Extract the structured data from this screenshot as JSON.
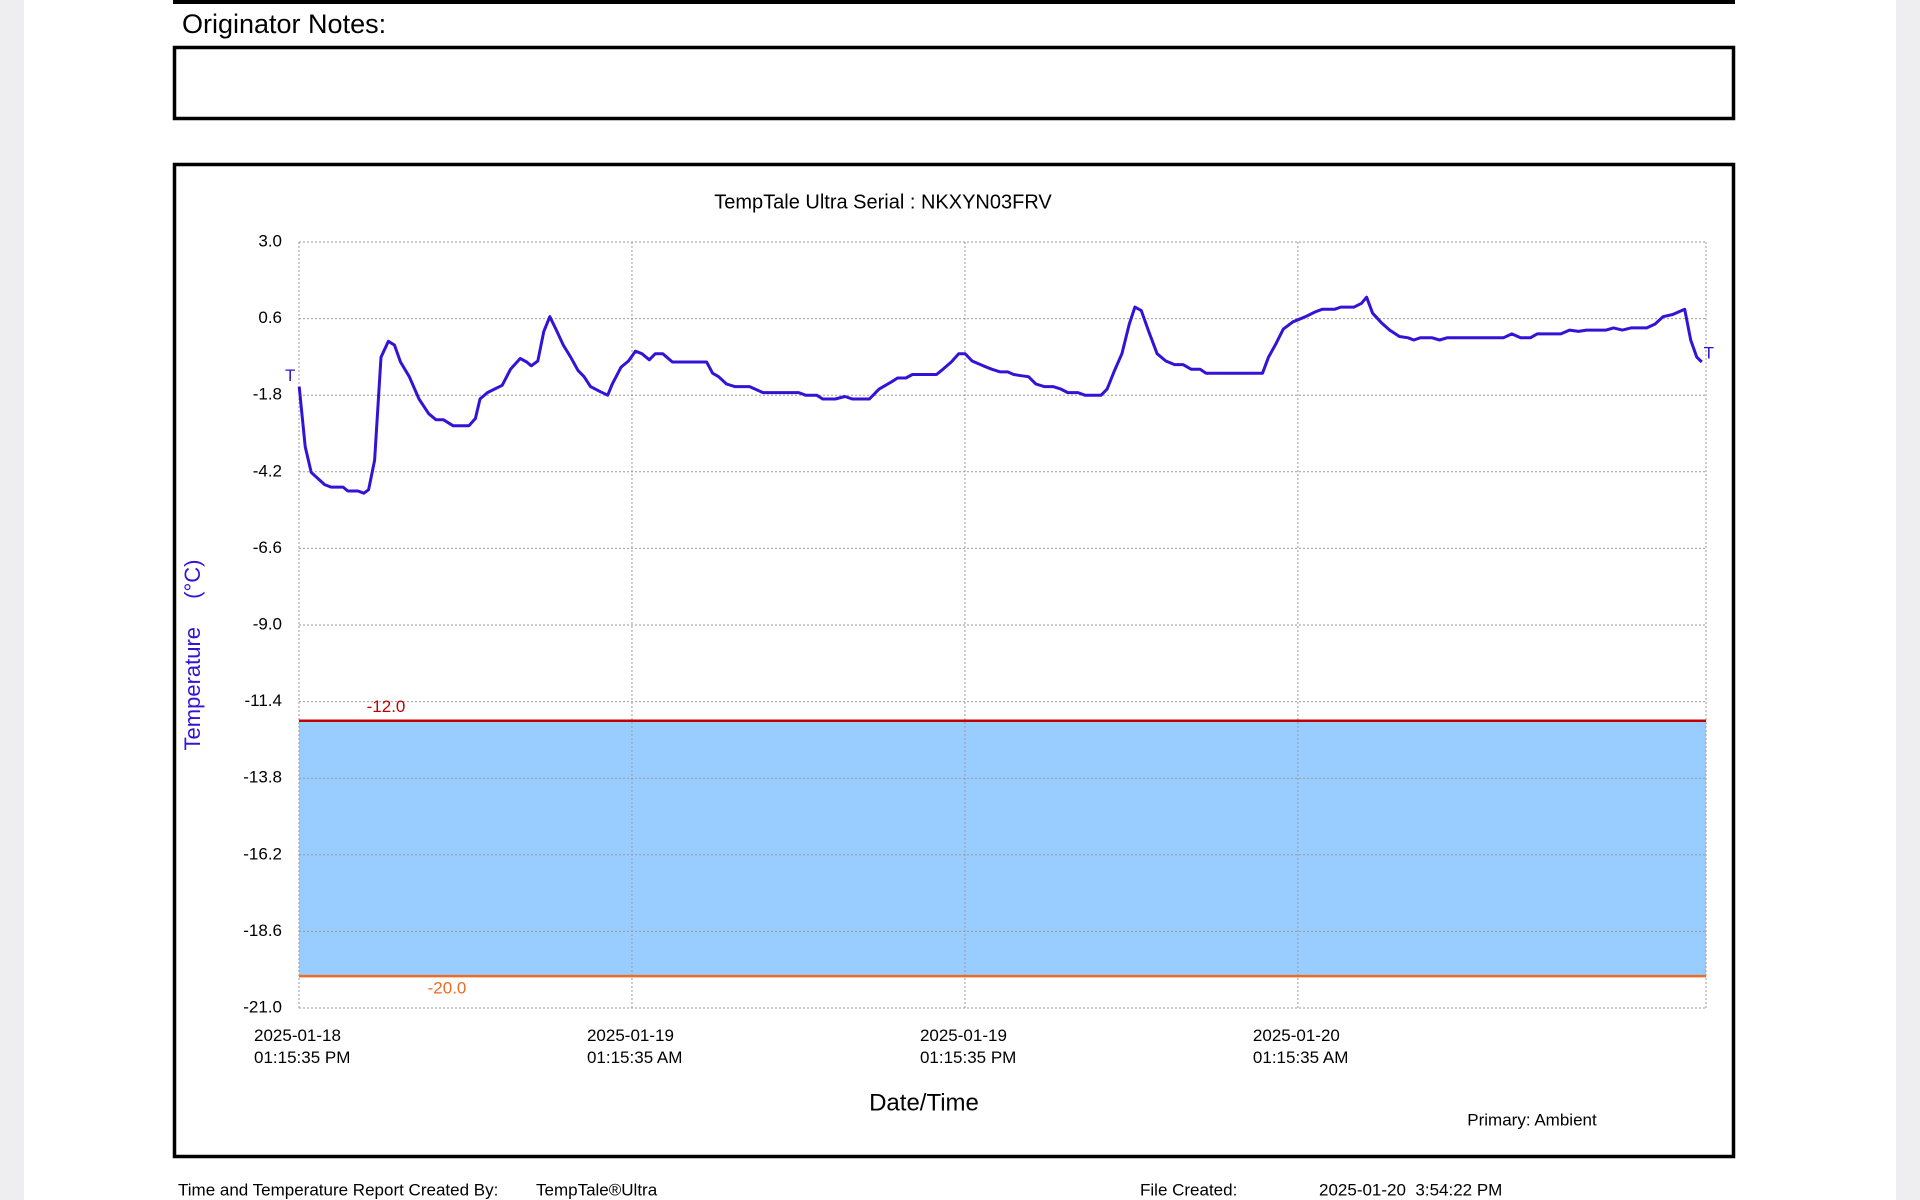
{
  "header": {
    "notes_label": "Originator Notes:"
  },
  "footer": {
    "created_by_label": "Time and Temperature Report Created By:",
    "created_by": "TempTale®Ultra",
    "file_created_label": "File Created:",
    "file_created": "2025-01-20  3:54:22 PM"
  },
  "chart_data": {
    "type": "line",
    "title": "TempTale Ultra  Serial : NKXYN03FRV",
    "y_label": "Temperature (°C)",
    "x_label": "Date/Time",
    "sensor_label": "Primary: Ambient",
    "color": "#3412d6",
    "grid": true,
    "trip_markers": [
      "T",
      "T"
    ],
    "band_color": "#99ccff",
    "limits": [
      {
        "value": -12,
        "label": "-12.0",
        "color": "#c00000"
      },
      {
        "value": -20,
        "label": "-20.0",
        "color": "#f06a20"
      }
    ],
    "xlim": [
      "2025-01-18T13:15:35",
      "2025-01-20T15:58:00"
    ],
    "xticks": [
      {
        "value": "2025-01-18T13:15:35",
        "label": "2025-01-18 01:15:35 PM"
      },
      {
        "value": "2025-01-19T01:15:35",
        "label": "2025-01-19 01:15:35 AM"
      },
      {
        "value": "2025-01-19T13:15:35",
        "label": "2025-01-19 01:15:35 PM"
      },
      {
        "value": "2025-01-20T01:15:35",
        "label": "2025-01-20 01:15:35 AM"
      }
    ],
    "ylim": [
      -21,
      3
    ],
    "yticks": [
      {
        "value": 3,
        "label": "3.0"
      },
      0.6,
      -1.8,
      -4.2,
      -6.6,
      {
        "value": -9,
        "label": "-9.0"
      },
      -11.4,
      -13.8,
      -16.2,
      -18.6,
      {
        "value": -21,
        "label": "-21.0"
      }
    ],
    "x": [
      "2025-01-18T13:16",
      "2025-01-18T13:29",
      "2025-01-18T13:42",
      "2025-01-18T14:11",
      "2025-01-18T14:25",
      "2025-01-18T14:51",
      "2025-01-18T15:01",
      "2025-01-18T15:23",
      "2025-01-18T15:36",
      "2025-01-18T15:46",
      "2025-01-18T15:59",
      "2025-01-18T16:13",
      "2025-01-18T16:29",
      "2025-01-18T16:42",
      "2025-01-18T16:55",
      "2025-01-18T17:14",
      "2025-01-18T17:35",
      "2025-01-18T17:56",
      "2025-01-18T18:12",
      "2025-01-18T18:28",
      "2025-01-18T18:49",
      "2025-01-18T19:23",
      "2025-01-18T19:37",
      "2025-01-18T19:47",
      "2025-01-18T20:03",
      "2025-01-18T20:35",
      "2025-01-18T20:53",
      "2025-01-18T21:14",
      "2025-01-18T21:28",
      "2025-01-18T21:38",
      "2025-01-18T21:52",
      "2025-01-18T22:05",
      "2025-01-18T22:18",
      "2025-01-18T22:31",
      "2025-01-18T22:47",
      "2025-01-18T23:03",
      "2025-01-18T23:19",
      "2025-01-18T23:32",
      "2025-01-18T23:46",
      "2025-01-19T00:07",
      "2025-01-19T00:23",
      "2025-01-19T00:33",
      "2025-01-19T00:52",
      "2025-01-19T01:08",
      "2025-01-19T01:23",
      "2025-01-19T01:37",
      "2025-01-19T01:53",
      "2025-01-19T02:06",
      "2025-01-19T02:22",
      "2025-01-19T02:43",
      "2025-01-19T03:57",
      "2025-01-19T04:10",
      "2025-01-19T04:23",
      "2025-01-19T04:40",
      "2025-01-19T04:58",
      "2025-01-19T05:30",
      "2025-01-19T05:59",
      "2025-01-19T07:16",
      "2025-01-19T07:31",
      "2025-01-19T07:55",
      "2025-01-19T08:08",
      "2025-01-19T08:35",
      "2025-01-19T08:56",
      "2025-01-19T09:12",
      "2025-01-19T09:49",
      "2025-01-19T10:10",
      "2025-01-19T10:37",
      "2025-01-19T10:50",
      "2025-01-19T11:08",
      "2025-01-19T11:22",
      "2025-01-19T12:14",
      "2025-01-19T12:28",
      "2025-01-19T12:46",
      "2025-01-19T13:02",
      "2025-01-19T13:16",
      "2025-01-19T13:31",
      "2025-01-19T13:55",
      "2025-01-19T14:14",
      "2025-01-19T14:32",
      "2025-01-19T14:48",
      "2025-01-19T15:01",
      "2025-01-19T15:17",
      "2025-01-19T15:33",
      "2025-01-19T15:49",
      "2025-01-19T16:07",
      "2025-01-19T16:26",
      "2025-01-19T16:43",
      "2025-01-19T16:58",
      "2025-01-19T17:20",
      "2025-01-19T17:35",
      "2025-01-19T18:10",
      "2025-01-19T18:23",
      "2025-01-19T18:39",
      "2025-01-19T18:55",
      "2025-01-19T19:11",
      "2025-01-19T19:23",
      "2025-01-19T19:37",
      "2025-01-19T19:53",
      "2025-01-19T20:11",
      "2025-01-19T20:30",
      "2025-01-19T20:49",
      "2025-01-19T21:07",
      "2025-01-19T21:25",
      "2025-01-19T21:44",
      "2025-01-19T21:57",
      "2025-01-19T23:59",
      "2025-01-20T00:12",
      "2025-01-20T00:28",
      "2025-01-20T00:44",
      "2025-01-20T01:05",
      "2025-01-20T01:32",
      "2025-01-20T01:53",
      "2025-01-20T02:08",
      "2025-01-20T02:35",
      "2025-01-20T02:48",
      "2025-01-20T03:17",
      "2025-01-20T03:33",
      "2025-01-20T03:44",
      "2025-01-20T03:57",
      "2025-01-20T04:16",
      "2025-01-20T04:34",
      "2025-01-20T04:55",
      "2025-01-20T05:14",
      "2025-01-20T05:26",
      "2025-01-20T05:40",
      "2025-01-20T06:06",
      "2025-01-20T06:22",
      "2025-01-20T06:38",
      "2025-01-20T08:40",
      "2025-01-20T08:58",
      "2025-01-20T09:17",
      "2025-01-20T09:38",
      "2025-01-20T09:53",
      "2025-01-20T10:44",
      "2025-01-20T11:03",
      "2025-01-20T11:22",
      "2025-01-20T11:40",
      "2025-01-20T12:22",
      "2025-01-20T12:38",
      "2025-01-20T12:57",
      "2025-01-20T13:16",
      "2025-01-20T13:50",
      "2025-01-20T14:08",
      "2025-01-20T14:25",
      "2025-01-20T14:46",
      "2025-01-20T15:12",
      "2025-01-20T15:25",
      "2025-01-20T15:38",
      "2025-01-20T15:49"
    ],
    "values": [
      -1.53,
      -3.41,
      -4.22,
      -4.6,
      -4.68,
      -4.68,
      -4.8,
      -4.8,
      -4.87,
      -4.76,
      -3.84,
      -0.61,
      -0.11,
      -0.23,
      -0.76,
      -1.22,
      -1.92,
      -2.38,
      -2.57,
      -2.57,
      -2.76,
      -2.76,
      -2.53,
      -1.92,
      -1.72,
      -1.49,
      -0.99,
      -0.65,
      -0.76,
      -0.88,
      -0.73,
      0.2,
      0.66,
      0.27,
      -0.23,
      -0.61,
      -1.03,
      -1.22,
      -1.53,
      -1.69,
      -1.8,
      -1.45,
      -0.92,
      -0.73,
      -0.42,
      -0.5,
      -0.69,
      -0.5,
      -0.5,
      -0.76,
      -0.76,
      -1.11,
      -1.22,
      -1.45,
      -1.53,
      -1.53,
      -1.72,
      -1.72,
      -1.8,
      -1.8,
      -1.92,
      -1.92,
      -1.84,
      -1.92,
      -1.92,
      -1.61,
      -1.38,
      -1.26,
      -1.26,
      -1.15,
      -1.15,
      -0.99,
      -0.76,
      -0.5,
      -0.5,
      -0.73,
      -0.88,
      -0.99,
      -1.07,
      -1.07,
      -1.15,
      -1.19,
      -1.22,
      -1.45,
      -1.53,
      -1.53,
      -1.61,
      -1.72,
      -1.72,
      -1.8,
      -1.8,
      -1.61,
      -1.03,
      -0.5,
      0.43,
      0.96,
      0.85,
      0.2,
      -0.5,
      -0.73,
      -0.84,
      -0.84,
      -0.99,
      -0.99,
      -1.11,
      -1.11,
      -0.61,
      -0.19,
      0.27,
      0.5,
      0.66,
      0.81,
      0.89,
      0.89,
      0.96,
      0.96,
      1.08,
      1.27,
      0.77,
      0.47,
      0.24,
      0.04,
      0.0,
      -0.07,
      0.0,
      0.0,
      -0.07,
      0.0,
      0.0,
      0.12,
      0.0,
      0.0,
      0.12,
      0.12,
      0.24,
      0.2,
      0.24,
      0.24,
      0.31,
      0.24,
      0.31,
      0.31,
      0.43,
      0.66,
      0.73,
      0.89,
      -0.07,
      -0.61,
      -0.76
    ]
  }
}
